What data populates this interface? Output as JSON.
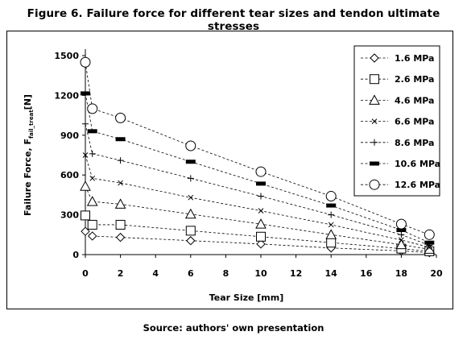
{
  "figure_title": "Figure 6. Failure force for different tear sizes and tendon ultimate stresses",
  "source_note": "Source: authors' own presentation",
  "chart_data": {
    "type": "line",
    "title": "Figure 6. Failure force for different tear sizes and tendon ultimate stresses",
    "xlabel": "Tear Size [mm]",
    "ylabel": {
      "main": "Failure Force, F",
      "subscript": "fail_treat",
      "suffix": "[N]"
    },
    "xlim": [
      0,
      20
    ],
    "ylim": [
      0,
      1500
    ],
    "xticks": [
      0,
      2,
      4,
      6,
      8,
      10,
      12,
      14,
      16,
      18,
      20
    ],
    "yticks": [
      0,
      300,
      600,
      900,
      1200,
      1500
    ],
    "grid": false,
    "legend_position": "top-right",
    "line_style": "dashed",
    "x": [
      0,
      0.4,
      2,
      6,
      10,
      14,
      18,
      19.6
    ],
    "series": [
      {
        "name": "1.6 MPa",
        "marker": "diamond",
        "values": [
          175,
          140,
          130,
          105,
          80,
          50,
          28,
          15
        ]
      },
      {
        "name": "2.6 MPa",
        "marker": "square",
        "values": [
          295,
          225,
          225,
          180,
          135,
          90,
          45,
          25
        ]
      },
      {
        "name": "4.6 MPa",
        "marker": "triangle",
        "values": [
          515,
          400,
          380,
          305,
          230,
          150,
          75,
          40
        ]
      },
      {
        "name": "6.6 MPa",
        "marker": "x",
        "values": [
          750,
          575,
          540,
          430,
          330,
          225,
          110,
          55
        ]
      },
      {
        "name": "8.6 MPa",
        "marker": "plus",
        "values": [
          985,
          760,
          710,
          575,
          440,
          300,
          150,
          70
        ]
      },
      {
        "name": "10.6 MPa",
        "marker": "bar",
        "values": [
          1215,
          930,
          870,
          700,
          535,
          370,
          185,
          90
        ]
      },
      {
        "name": "12.6 MPa",
        "marker": "circle",
        "values": [
          1450,
          1100,
          1030,
          820,
          625,
          440,
          230,
          150
        ]
      }
    ]
  }
}
